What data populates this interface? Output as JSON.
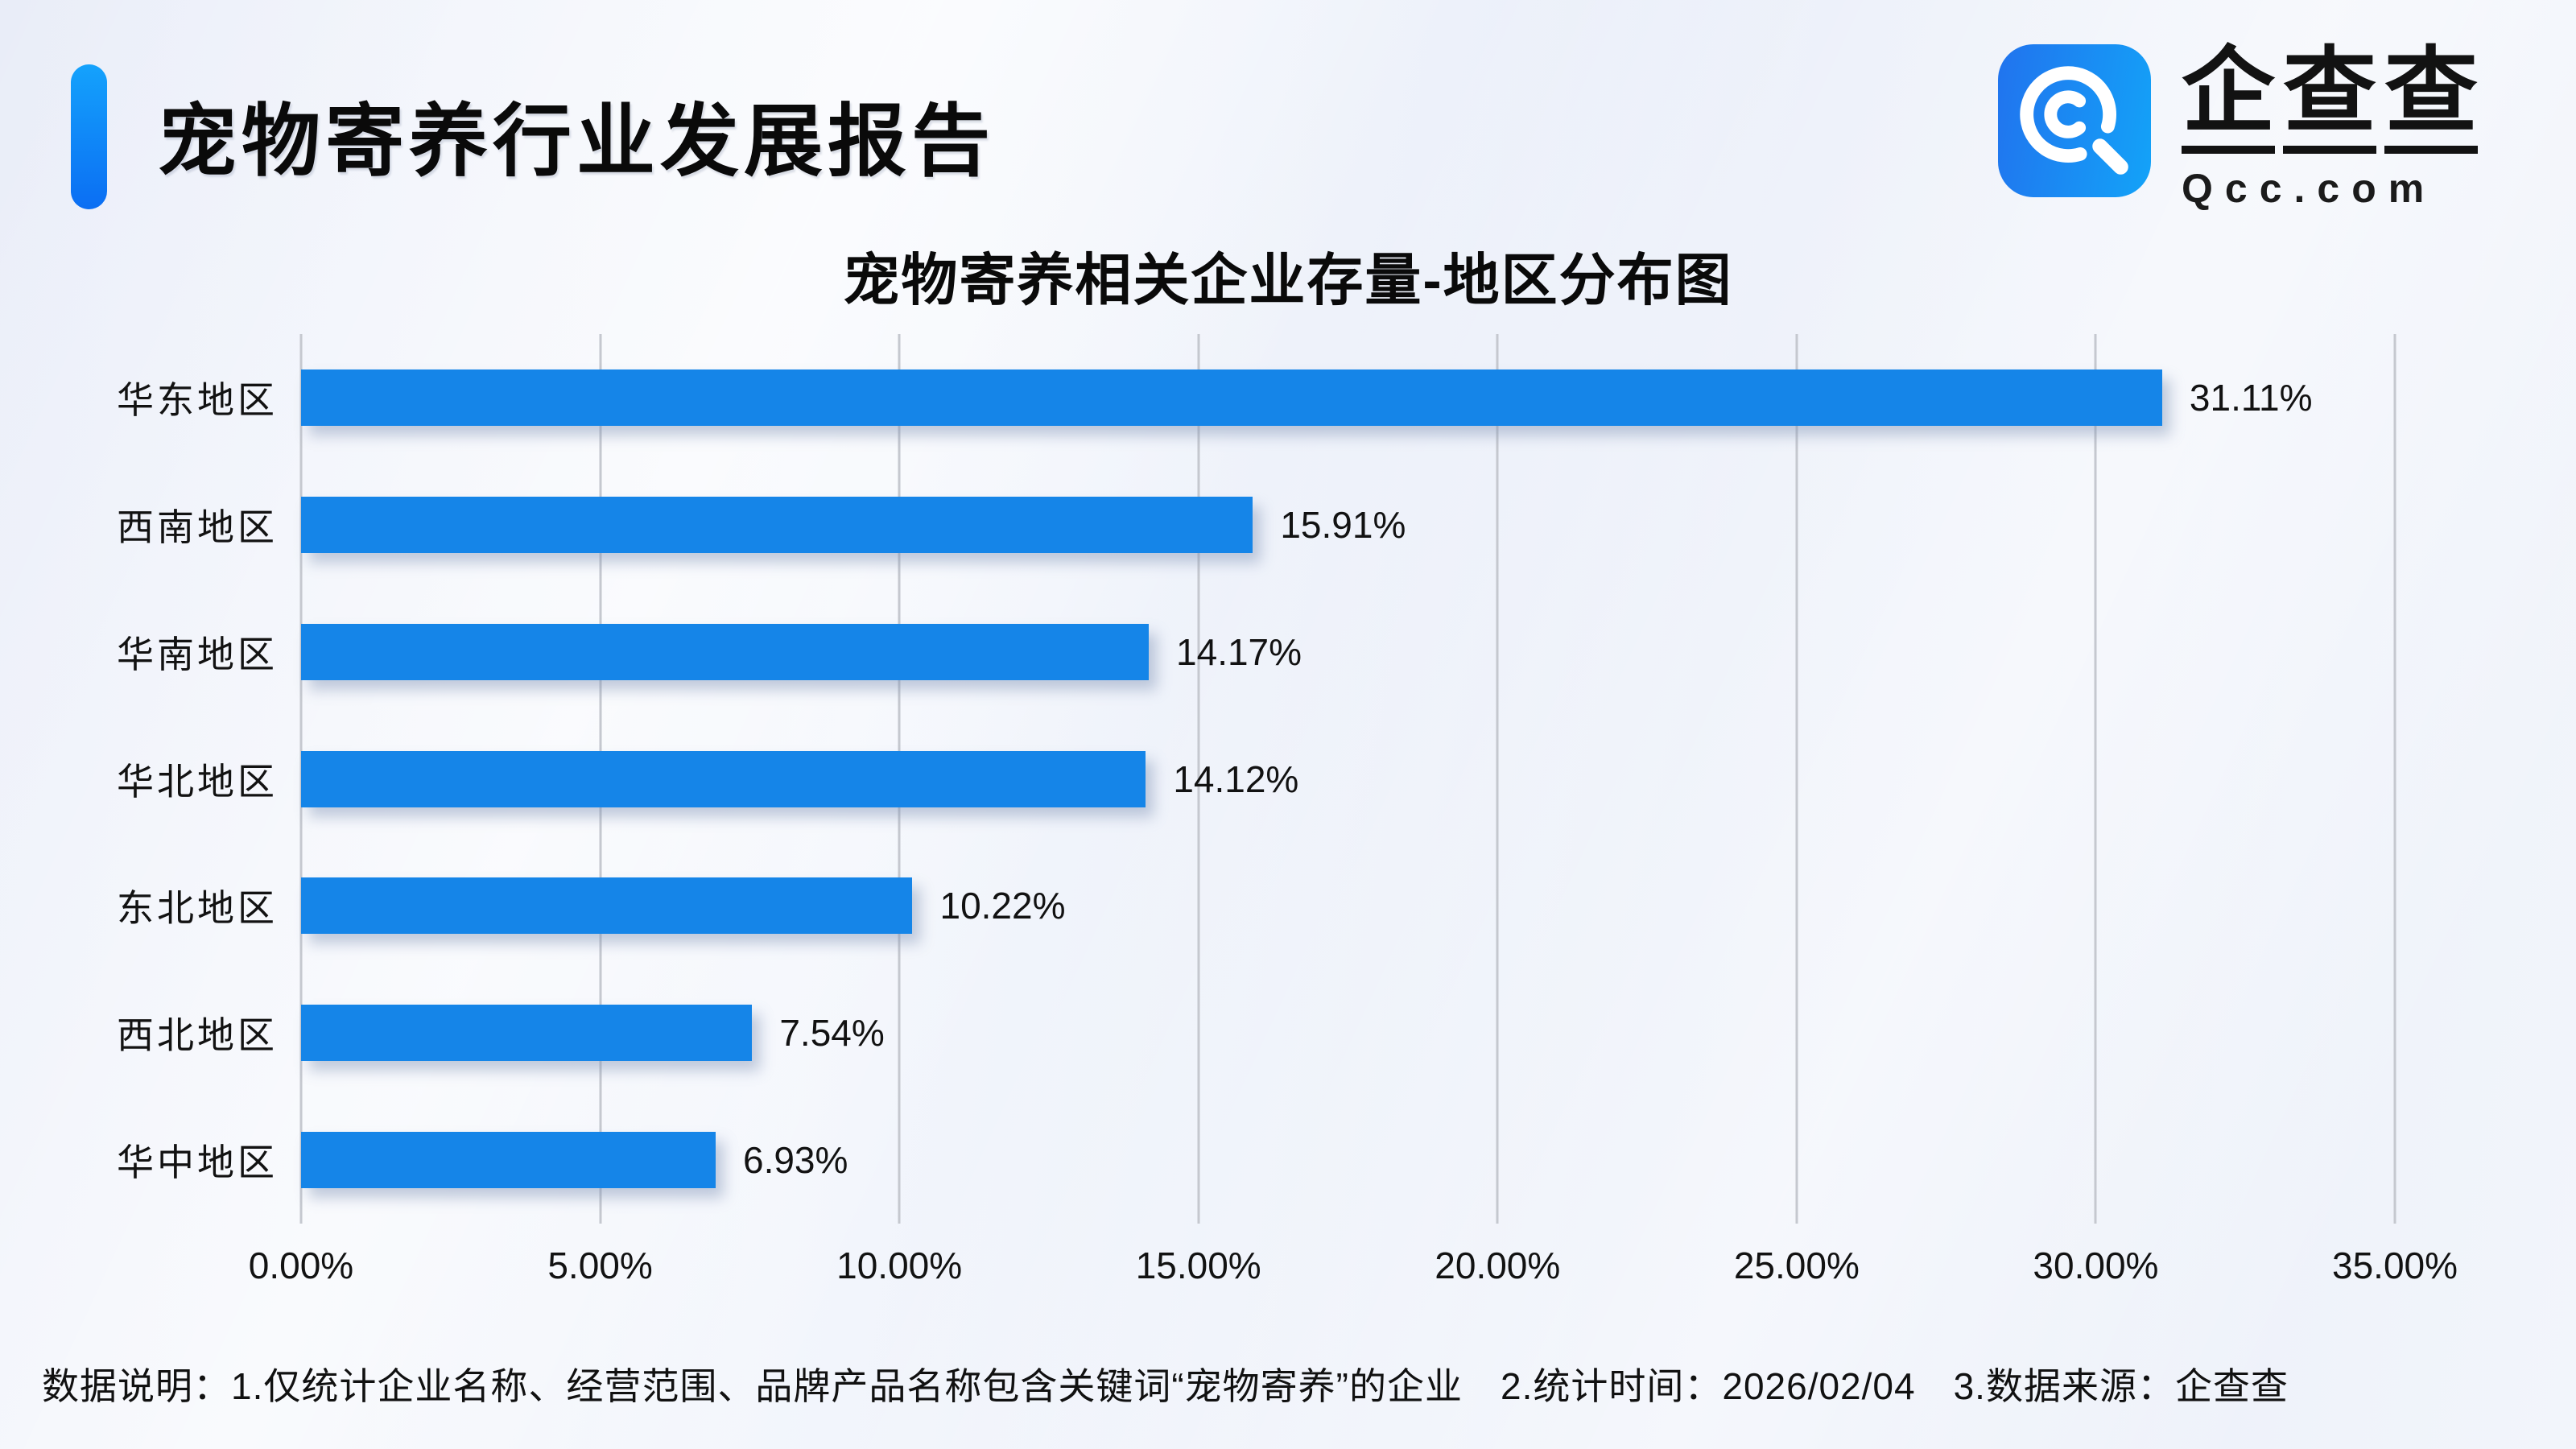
{
  "header": {
    "title": "宠物寄养行业发展报告",
    "accent_color_top": "#14A2FC",
    "accent_color_bottom": "#0B6EF3"
  },
  "logo": {
    "icon": "qcc-magnifier-icon",
    "icon_bg_left": "#2173EE",
    "icon_bg_right": "#13A3F8",
    "brand_chars": [
      "企",
      "查",
      "查"
    ],
    "domain": "Qcc.com"
  },
  "chart_data": {
    "type": "bar",
    "orientation": "horizontal",
    "title": "宠物寄养相关企业存量-地区分布图",
    "categories": [
      "华东地区",
      "西南地区",
      "华南地区",
      "华北地区",
      "东北地区",
      "西北地区",
      "华中地区"
    ],
    "values": [
      31.11,
      15.91,
      14.17,
      14.12,
      10.22,
      7.54,
      6.93
    ],
    "value_labels": [
      "31.11%",
      "15.91%",
      "14.17%",
      "14.12%",
      "10.22%",
      "7.54%",
      "6.93%"
    ],
    "xlim": [
      0,
      35
    ],
    "x_ticks": [
      "0.00%",
      "5.00%",
      "10.00%",
      "15.00%",
      "20.00%",
      "25.00%",
      "30.00%",
      "35.00%"
    ],
    "bar_color": "#1585E8",
    "grid": true,
    "gridline_color": "#C5C8CF",
    "legend": "none"
  },
  "footnote": {
    "text": "数据说明：1.仅统计企业名称、经营范围、品牌产品名称包含关键词“宠物寄养”的企业　2.统计时间：2026/02/04　3.数据来源：企查查"
  }
}
